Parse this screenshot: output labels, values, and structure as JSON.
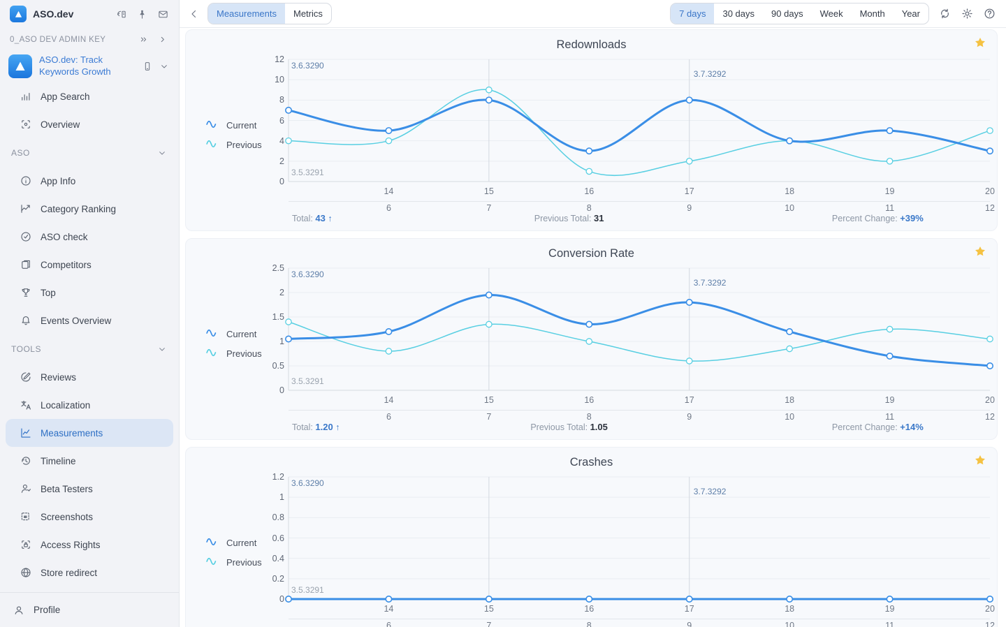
{
  "colors": {
    "accent": "#2d6fc4",
    "series_current": "#3a8ee6",
    "series_previous": "#58cfe2",
    "star": "#f5c242",
    "annotation_primary": "#5d7ea8",
    "annotation_muted": "#9aa3ae",
    "grid": "#e9edf2",
    "axis": "#d6dae1",
    "release_line": "#d3d8df"
  },
  "sidebar": {
    "app_name": "ASO.dev",
    "header_icons": [
      "collapse-icon",
      "pin-icon",
      "mail-icon"
    ],
    "admin_key": {
      "label": "0_ASO DEV ADMIN KEY",
      "icons": [
        "chevrons-right-icon",
        "chevron-right-icon"
      ]
    },
    "app_switcher": {
      "title": "ASO.dev: Track Keywords Growth",
      "icons": [
        "phone-icon",
        "chevron-down-icon"
      ]
    },
    "primary_items": [
      {
        "id": "app-search",
        "label": "App Search",
        "icon": "bar-chart-icon"
      },
      {
        "id": "overview",
        "label": "Overview",
        "icon": "overview-icon"
      }
    ],
    "sections": [
      {
        "label": "ASO",
        "items": [
          {
            "id": "app-info",
            "label": "App Info",
            "icon": "info-icon"
          },
          {
            "id": "category-ranking",
            "label": "Category Ranking",
            "icon": "category-ranking-icon"
          },
          {
            "id": "aso-check",
            "label": "ASO check",
            "icon": "check-circle-icon"
          },
          {
            "id": "competitors",
            "label": "Competitors",
            "icon": "competitors-icon"
          },
          {
            "id": "top",
            "label": "Top",
            "icon": "trophy-icon"
          },
          {
            "id": "events-overview",
            "label": "Events Overview",
            "icon": "bell-icon"
          }
        ]
      },
      {
        "label": "TOOLS",
        "items": [
          {
            "id": "reviews",
            "label": "Reviews",
            "icon": "reviews-icon"
          },
          {
            "id": "localization",
            "label": "Localization",
            "icon": "localization-icon"
          },
          {
            "id": "measurements",
            "label": "Measurements",
            "icon": "measurements-icon",
            "active": true
          },
          {
            "id": "timeline",
            "label": "Timeline",
            "icon": "timeline-icon"
          },
          {
            "id": "beta-testers",
            "label": "Beta Testers",
            "icon": "beta-testers-icon"
          },
          {
            "id": "screenshots",
            "label": "Screenshots",
            "icon": "screenshots-icon"
          },
          {
            "id": "access-rights",
            "label": "Access Rights",
            "icon": "access-rights-icon"
          },
          {
            "id": "store-redirect",
            "label": "Store redirect",
            "icon": "store-redirect-icon"
          }
        ]
      }
    ],
    "profile": {
      "label": "Profile",
      "icon": "person-icon"
    }
  },
  "topbar": {
    "tabs": [
      {
        "label": "Measurements",
        "active": true
      },
      {
        "label": "Metrics",
        "active": false
      }
    ],
    "ranges": [
      {
        "label": "7 days",
        "active": true
      },
      {
        "label": "30 days",
        "active": false
      },
      {
        "label": "90 days",
        "active": false
      },
      {
        "label": "Week",
        "active": false
      },
      {
        "label": "Month",
        "active": false
      },
      {
        "label": "Year",
        "active": false
      }
    ],
    "action_icons": [
      "refresh-icon",
      "gear-icon",
      "help-icon"
    ]
  },
  "chart_data": [
    {
      "id": "redownloads",
      "type": "line",
      "title": "Redownloads",
      "ylim": [
        0,
        12
      ],
      "yticks": [
        0,
        2,
        4,
        6,
        8,
        10,
        12
      ],
      "x_labels_current": [
        "14",
        "15",
        "16",
        "17",
        "18",
        "19",
        "20"
      ],
      "x_labels_previous": [
        "6",
        "7",
        "8",
        "9",
        "10",
        "11",
        "12"
      ],
      "release_line_indexes": [
        2,
        4
      ],
      "annotations": [
        {
          "text": "3.6.3290",
          "position": "top-left"
        },
        {
          "text": "3.7.3292",
          "position": "top-at-line",
          "line_day_index": 4
        },
        {
          "text": "3.5.3291",
          "position": "bottom-left"
        }
      ],
      "series": [
        {
          "name": "Current",
          "values": [
            7,
            5,
            8,
            3,
            8,
            4,
            5,
            3
          ]
        },
        {
          "name": "Previous",
          "values": [
            4,
            4,
            9,
            1,
            2,
            4,
            2,
            5
          ]
        }
      ],
      "totals": {
        "total_label": "Total:",
        "total_value": "43",
        "total_arrow": "↑",
        "previous_label": "Previous Total:",
        "previous_value": "31",
        "change_label": "Percent Change:",
        "change_value": "+39%"
      }
    },
    {
      "id": "conversion-rate",
      "type": "line",
      "title": "Conversion Rate",
      "ylim": [
        0,
        2.5
      ],
      "yticks": [
        0,
        0.5,
        1,
        1.5,
        2,
        2.5
      ],
      "x_labels_current": [
        "14",
        "15",
        "16",
        "17",
        "18",
        "19",
        "20"
      ],
      "x_labels_previous": [
        "6",
        "7",
        "8",
        "9",
        "10",
        "11",
        "12"
      ],
      "release_line_indexes": [
        2,
        4
      ],
      "annotations": [
        {
          "text": "3.6.3290",
          "position": "top-left"
        },
        {
          "text": "3.7.3292",
          "position": "top-at-line",
          "line_day_index": 4
        },
        {
          "text": "3.5.3291",
          "position": "bottom-left"
        }
      ],
      "series": [
        {
          "name": "Current",
          "values": [
            1.05,
            1.2,
            1.95,
            1.35,
            1.8,
            1.2,
            0.7,
            0.5
          ]
        },
        {
          "name": "Previous",
          "values": [
            1.4,
            0.8,
            1.35,
            1.0,
            0.6,
            0.85,
            1.25,
            1.05
          ]
        }
      ],
      "totals": {
        "total_label": "Total:",
        "total_value": "1.20",
        "total_arrow": "↑",
        "previous_label": "Previous Total:",
        "previous_value": "1.05",
        "change_label": "Percent Change:",
        "change_value": "+14%"
      }
    },
    {
      "id": "crashes",
      "type": "line",
      "title": "Crashes",
      "ylim": [
        0,
        1.2
      ],
      "yticks": [
        0,
        0.2,
        0.4,
        0.6,
        0.8,
        1,
        1.2
      ],
      "x_labels_current": [
        "14",
        "15",
        "16",
        "17",
        "18",
        "19",
        "20"
      ],
      "x_labels_previous": [
        "6",
        "7",
        "8",
        "9",
        "10",
        "11",
        "12"
      ],
      "release_line_indexes": [
        2,
        4
      ],
      "annotations": [
        {
          "text": "3.6.3290",
          "position": "top-left"
        },
        {
          "text": "3.7.3292",
          "position": "top-at-line",
          "line_day_index": 4
        },
        {
          "text": "3.5.3291",
          "position": "bottom-left"
        }
      ],
      "series": [
        {
          "name": "Current",
          "values": [
            0,
            0,
            0,
            0,
            0,
            0,
            0,
            0
          ]
        },
        {
          "name": "Previous",
          "values": [
            0,
            0,
            0,
            0,
            0,
            0,
            0,
            0
          ]
        }
      ],
      "totals": null
    }
  ]
}
